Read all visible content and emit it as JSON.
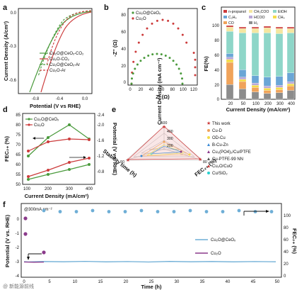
{
  "panels": {
    "a": {
      "label": "a",
      "ylabel": "Current Density (A/cm²)",
      "xlabel": "Potential (V vs RHE)",
      "xticks": [
        "-0.8",
        "-0.4",
        "0.0"
      ],
      "yticks": [
        "0.0",
        "-0.3",
        "-0.6"
      ],
      "legend": [
        "Cu₂O@CeOₓ-CO₂",
        "Cu₂O-CO₂",
        "Cu₂O@CeOₓ-Ar",
        "Cu₂O-Ar"
      ]
    },
    "b": {
      "label": "b",
      "ylabel": "-Z'' (Ω)",
      "xlabel": "Z' (Ω)",
      "xticks": [
        "0",
        "20",
        "40",
        "60",
        "80",
        "100",
        "120"
      ],
      "yticks": [
        "0",
        "20",
        "40",
        "60",
        "80"
      ],
      "legend": [
        "Cu₂O@CeOₓ",
        "Cu₂O"
      ]
    },
    "c": {
      "label": "c",
      "ylabel": "FE(%)",
      "xlabel": "Current Density (mA/cm²)",
      "xticks": [
        "20",
        "50",
        "100",
        "200",
        "300",
        "400"
      ],
      "yticks": [
        "0",
        "20",
        "40",
        "60",
        "80",
        "100"
      ],
      "legend": [
        "n-propanol",
        "CH₃COO",
        "EtOH",
        "C₂H₄",
        "HCOO",
        "CH₄",
        "CO",
        "H₂"
      ]
    },
    "d": {
      "label": "d",
      "ylabel_left": "FEC₂₊ (%)",
      "ylabel_right": "Potential (V vs. RHE)",
      "xlabel": "Current Density (mA/cm²)",
      "xticks": [
        "100",
        "200",
        "300",
        "400"
      ],
      "yticks_left": [
        "50",
        "55",
        "60",
        "65",
        "70",
        "75",
        "80",
        "85"
      ],
      "yticks_right": [
        "-0.8",
        "-1.2",
        "-1.6",
        "-2.0",
        "-2.4"
      ],
      "legend": [
        "Cu₂O@CeOₓ",
        "Cu₂O"
      ]
    },
    "e": {
      "label": "e",
      "axis_top": "Current Density (mA cm⁻²)",
      "axis_left": "Stability time (h)",
      "axis_right": "FEC₂₊ (%)",
      "top_ticks": [
        "500",
        "400",
        "300",
        "200"
      ],
      "left_ticks": [
        "50",
        "40",
        "30",
        "20",
        "10"
      ],
      "right_ticks": [
        "80",
        "70",
        "60",
        "50"
      ],
      "legend": [
        "This work",
        "Cu-D",
        "OD-Cu",
        "B-Cu-Zn",
        "Cu₃(PO4)₂/Cu/PTFE",
        "Cu-PTFE-99 NN",
        "Cu₂O/CuO",
        "Cu/SiO₂"
      ]
    },
    "f": {
      "label": "f",
      "annotation": "@300mA cm⁻²",
      "ylabel_left": "Potential (V vs. RHE)",
      "ylabel_right": "FEC₂₊ (%)",
      "xlabel": "Time (h)",
      "xticks": [
        "0",
        "5",
        "10",
        "15",
        "20",
        "25",
        "30",
        "35",
        "40",
        "45",
        "50"
      ],
      "yticks_left": [
        "0",
        "-1",
        "-2",
        "-3",
        "-4"
      ],
      "yticks_right": [
        "0",
        "20",
        "40",
        "60",
        "80",
        "100"
      ],
      "legend": [
        "Cu₂O@CeOₓ",
        "Cu₂O"
      ]
    }
  },
  "watermark": "@ 新能源前线",
  "colors": {
    "green": "#4a9a3c",
    "red": "#cc3b3b",
    "blue_line": "#6eaed6",
    "purple": "#8b3a8b"
  }
}
